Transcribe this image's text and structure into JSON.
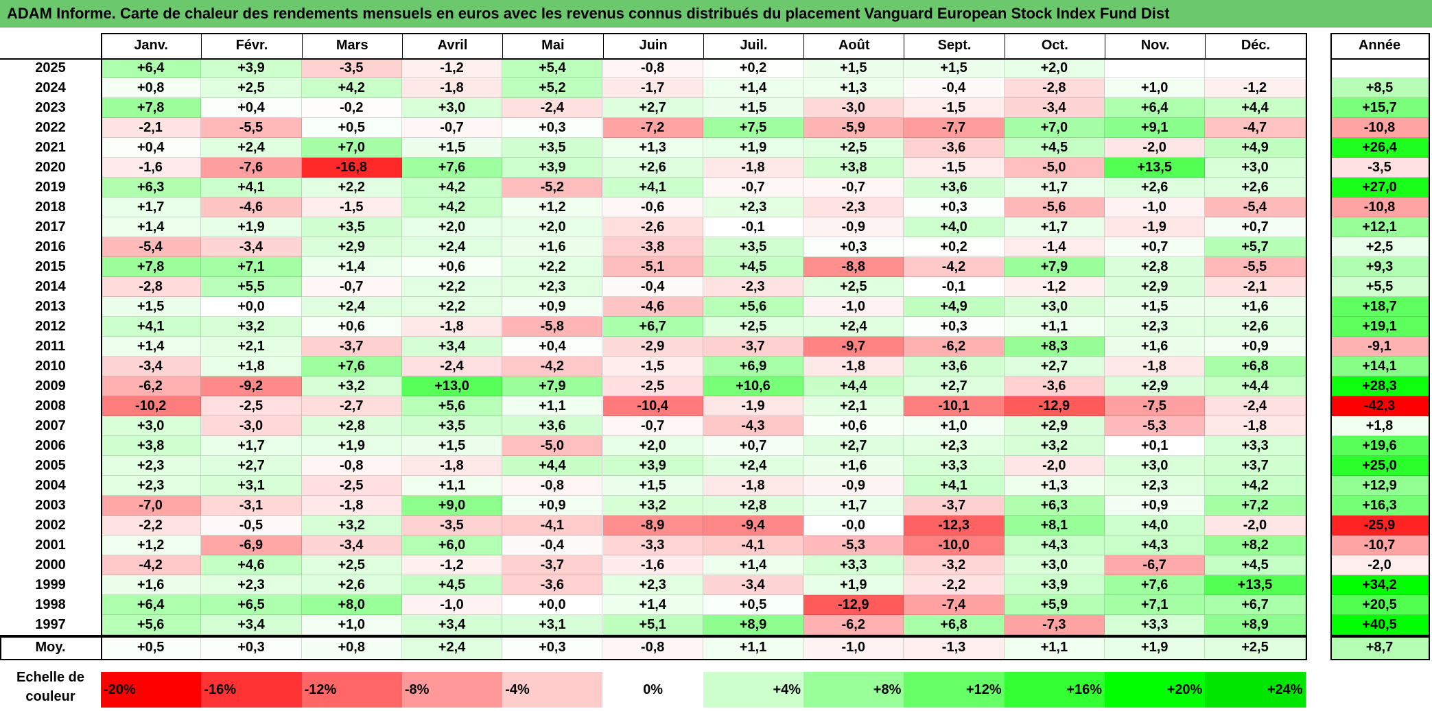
{
  "title": "ADAM Informe. Carte de chaleur des rendements mensuels en euros avec les revenus connus distribués du placement Vanguard European Stock Index Fund Dist",
  "chart_data": {
    "type": "heatmap",
    "title": "ADAM Informe. Carte de chaleur des rendements mensuels en euros avec les revenus connus distribués du placement Vanguard European Stock Index Fund Dist",
    "months": [
      "Janv.",
      "Févr.",
      "Mars",
      "Avril",
      "Mai",
      "Juin",
      "Juil.",
      "Août",
      "Sept.",
      "Oct.",
      "Nov.",
      "Déc."
    ],
    "annual_header": "Année",
    "rows": [
      {
        "year": "2025",
        "values": [
          "+6,4",
          "+3,9",
          "-3,5",
          "-1,2",
          "+5,4",
          "-0,8",
          "+0,2",
          "+1,5",
          "+1,5",
          "+2,0",
          "",
          ""
        ],
        "annual": ""
      },
      {
        "year": "2024",
        "values": [
          "+0,8",
          "+2,5",
          "+4,2",
          "-1,8",
          "+5,2",
          "-1,7",
          "+1,4",
          "+1,3",
          "-0,4",
          "-2,8",
          "+1,0",
          "-1,2"
        ],
        "annual": "+8,5"
      },
      {
        "year": "2023",
        "values": [
          "+7,8",
          "+0,4",
          "-0,2",
          "+3,0",
          "-2,4",
          "+2,7",
          "+1,5",
          "-3,0",
          "-1,5",
          "-3,4",
          "+6,4",
          "+4,4"
        ],
        "annual": "+15,7"
      },
      {
        "year": "2022",
        "values": [
          "-2,1",
          "-5,5",
          "+0,5",
          "-0,7",
          "+0,3",
          "-7,2",
          "+7,5",
          "-5,9",
          "-7,7",
          "+7,0",
          "+9,1",
          "-4,7"
        ],
        "annual": "-10,8"
      },
      {
        "year": "2021",
        "values": [
          "+0,4",
          "+2,4",
          "+7,0",
          "+1,5",
          "+3,5",
          "+1,3",
          "+1,9",
          "+2,5",
          "-3,6",
          "+4,5",
          "-2,0",
          "+4,9"
        ],
        "annual": "+26,4"
      },
      {
        "year": "2020",
        "values": [
          "-1,6",
          "-7,6",
          "-16,8",
          "+7,6",
          "+3,9",
          "+2,6",
          "-1,8",
          "+3,8",
          "-1,5",
          "-5,0",
          "+13,5",
          "+3,0"
        ],
        "annual": "-3,5"
      },
      {
        "year": "2019",
        "values": [
          "+6,3",
          "+4,1",
          "+2,2",
          "+4,2",
          "-5,2",
          "+4,1",
          "-0,7",
          "-0,7",
          "+3,6",
          "+1,7",
          "+2,6",
          "+2,6"
        ],
        "annual": "+27,0"
      },
      {
        "year": "2018",
        "values": [
          "+1,7",
          "-4,6",
          "-1,5",
          "+4,2",
          "+1,2",
          "-0,6",
          "+2,3",
          "-2,3",
          "+0,3",
          "-5,6",
          "-1,0",
          "-5,4"
        ],
        "annual": "-10,8"
      },
      {
        "year": "2017",
        "values": [
          "+1,4",
          "+1,9",
          "+3,5",
          "+2,0",
          "+2,0",
          "-2,6",
          "-0,1",
          "-0,9",
          "+4,0",
          "+1,7",
          "-1,9",
          "+0,7"
        ],
        "annual": "+12,1"
      },
      {
        "year": "2016",
        "values": [
          "-5,4",
          "-3,4",
          "+2,9",
          "+2,4",
          "+1,6",
          "-3,8",
          "+3,5",
          "+0,3",
          "+0,2",
          "-1,4",
          "+0,7",
          "+5,7"
        ],
        "annual": "+2,5"
      },
      {
        "year": "2015",
        "values": [
          "+7,8",
          "+7,1",
          "+1,4",
          "+0,6",
          "+2,2",
          "-5,1",
          "+4,5",
          "-8,8",
          "-4,2",
          "+7,9",
          "+2,8",
          "-5,5"
        ],
        "annual": "+9,3"
      },
      {
        "year": "2014",
        "values": [
          "-2,8",
          "+5,5",
          "-0,7",
          "+2,2",
          "+2,3",
          "-0,4",
          "-2,3",
          "+2,5",
          "-0,1",
          "-1,2",
          "+2,9",
          "-2,1"
        ],
        "annual": "+5,5"
      },
      {
        "year": "2013",
        "values": [
          "+1,5",
          "+0,0",
          "+2,4",
          "+2,2",
          "+0,9",
          "-4,6",
          "+5,6",
          "-1,0",
          "+4,9",
          "+3,0",
          "+1,5",
          "+1,6"
        ],
        "annual": "+18,7"
      },
      {
        "year": "2012",
        "values": [
          "+4,1",
          "+3,2",
          "+0,6",
          "-1,8",
          "-5,8",
          "+6,7",
          "+2,5",
          "+2,4",
          "+0,3",
          "+1,1",
          "+2,3",
          "+2,6"
        ],
        "annual": "+19,1"
      },
      {
        "year": "2011",
        "values": [
          "+1,4",
          "+2,1",
          "-3,7",
          "+3,4",
          "+0,4",
          "-2,9",
          "-3,7",
          "-9,7",
          "-6,2",
          "+8,3",
          "+1,6",
          "+0,9"
        ],
        "annual": "-9,1"
      },
      {
        "year": "2010",
        "values": [
          "-3,4",
          "+1,8",
          "+7,6",
          "-2,4",
          "-4,2",
          "-1,5",
          "+6,9",
          "-1,8",
          "+3,6",
          "+2,7",
          "-1,8",
          "+6,8"
        ],
        "annual": "+14,1"
      },
      {
        "year": "2009",
        "values": [
          "-6,2",
          "-9,2",
          "+3,2",
          "+13,0",
          "+7,9",
          "-2,5",
          "+10,6",
          "+4,4",
          "+2,7",
          "-3,6",
          "+2,9",
          "+4,4"
        ],
        "annual": "+28,3"
      },
      {
        "year": "2008",
        "values": [
          "-10,2",
          "-2,5",
          "-2,7",
          "+5,6",
          "+1,1",
          "-10,4",
          "-1,9",
          "+2,1",
          "-10,1",
          "-12,9",
          "-7,5",
          "-2,4"
        ],
        "annual": "-42,3"
      },
      {
        "year": "2007",
        "values": [
          "+3,0",
          "-3,0",
          "+2,8",
          "+3,5",
          "+3,6",
          "-0,7",
          "-4,3",
          "+0,6",
          "+1,0",
          "+2,9",
          "-5,3",
          "-1,8"
        ],
        "annual": "+1,8"
      },
      {
        "year": "2006",
        "values": [
          "+3,8",
          "+1,7",
          "+1,9",
          "+1,5",
          "-5,0",
          "+2,0",
          "+0,7",
          "+2,7",
          "+2,3",
          "+3,2",
          "+0,1",
          "+3,3"
        ],
        "annual": "+19,6"
      },
      {
        "year": "2005",
        "values": [
          "+2,3",
          "+2,7",
          "-0,8",
          "-1,8",
          "+4,4",
          "+3,9",
          "+2,4",
          "+1,6",
          "+3,3",
          "-2,0",
          "+3,0",
          "+3,7"
        ],
        "annual": "+25,0"
      },
      {
        "year": "2004",
        "values": [
          "+2,3",
          "+3,1",
          "-2,5",
          "+1,1",
          "-0,8",
          "+1,5",
          "-1,8",
          "-0,9",
          "+4,1",
          "+1,3",
          "+2,3",
          "+4,2"
        ],
        "annual": "+12,9"
      },
      {
        "year": "2003",
        "values": [
          "-7,0",
          "-3,1",
          "-1,8",
          "+9,0",
          "+0,9",
          "+3,2",
          "+2,8",
          "+1,7",
          "-3,7",
          "+6,3",
          "+0,9",
          "+7,2"
        ],
        "annual": "+16,3"
      },
      {
        "year": "2002",
        "values": [
          "-2,2",
          "-0,5",
          "+3,2",
          "-3,5",
          "-4,1",
          "-8,9",
          "-9,4",
          "-0,0",
          "-12,3",
          "+8,1",
          "+4,0",
          "-2,0"
        ],
        "annual": "-25,9"
      },
      {
        "year": "2001",
        "values": [
          "+1,2",
          "-6,9",
          "-3,4",
          "+6,0",
          "-0,4",
          "-3,3",
          "-4,1",
          "-5,3",
          "-10,0",
          "+4,3",
          "+4,3",
          "+8,2"
        ],
        "annual": "-10,7"
      },
      {
        "year": "2000",
        "values": [
          "-4,2",
          "+4,6",
          "+2,5",
          "-1,2",
          "-3,7",
          "-1,6",
          "+1,4",
          "+3,3",
          "-3,2",
          "+3,0",
          "-6,7",
          "+4,5"
        ],
        "annual": "-2,0"
      },
      {
        "year": "1999",
        "values": [
          "+1,6",
          "+2,3",
          "+2,6",
          "+4,5",
          "-3,6",
          "+2,3",
          "-3,4",
          "+1,9",
          "-2,2",
          "+3,9",
          "+7,6",
          "+13,5"
        ],
        "annual": "+34,2"
      },
      {
        "year": "1998",
        "values": [
          "+6,4",
          "+6,5",
          "+8,0",
          "-1,0",
          "+0,0",
          "+1,4",
          "+0,5",
          "-12,9",
          "-7,4",
          "+5,9",
          "+7,1",
          "+6,7"
        ],
        "annual": "+20,5"
      },
      {
        "year": "1997",
        "values": [
          "+5,6",
          "+3,4",
          "+1,0",
          "+3,4",
          "+3,1",
          "+5,1",
          "+8,9",
          "-6,2",
          "+6,8",
          "-7,3",
          "+3,3",
          "+8,9"
        ],
        "annual": "+40,5"
      }
    ],
    "average": {
      "label": "Moy.",
      "values": [
        "+0,5",
        "+0,3",
        "+0,8",
        "+2,4",
        "+0,3",
        "-0,8",
        "+1,1",
        "-1,0",
        "-1,3",
        "+1,1",
        "+1,9",
        "+2,5"
      ],
      "annual": "+8,7"
    },
    "color_scale": {
      "label": "Echelle de couleur",
      "steps": [
        {
          "text": "-20%",
          "color": "#ff0000",
          "align": "left"
        },
        {
          "text": "-16%",
          "color": "#ff3333",
          "align": "left"
        },
        {
          "text": "-12%",
          "color": "#ff6666",
          "align": "left"
        },
        {
          "text": "-8%",
          "color": "#ff9999",
          "align": "left"
        },
        {
          "text": "-4%",
          "color": "#ffcccc",
          "align": "left"
        },
        {
          "text": "0%",
          "color": "#ffffff",
          "align": "center"
        },
        {
          "text": "+4%",
          "color": "#ccffcc",
          "align": "right"
        },
        {
          "text": "+8%",
          "color": "#99ff99",
          "align": "right"
        },
        {
          "text": "+12%",
          "color": "#66ff66",
          "align": "right"
        },
        {
          "text": "+16%",
          "color": "#33ff33",
          "align": "right"
        },
        {
          "text": "+20%",
          "color": "#00ff00",
          "align": "right"
        },
        {
          "text": "+24%",
          "color": "#00e600",
          "align": "right"
        }
      ]
    },
    "colors": {
      "negative_max": "#ff0000",
      "neutral": "#ffffff",
      "positive_max": "#00ff00",
      "title_bar": "#6cc86c"
    }
  }
}
